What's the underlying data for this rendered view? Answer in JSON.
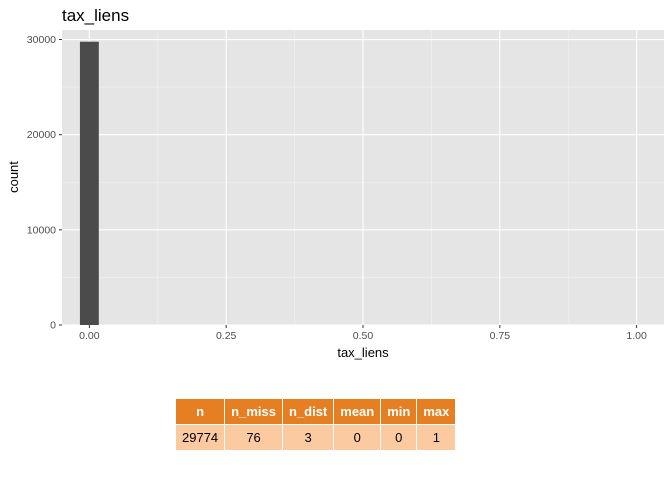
{
  "chart_data": {
    "type": "bar",
    "title": "tax_liens",
    "xlabel": "tax_liens",
    "ylabel": "count",
    "xlim": [
      -0.05,
      1.05
    ],
    "ylim": [
      0,
      31000
    ],
    "x_ticks": [
      0.0,
      0.25,
      0.5,
      0.75,
      1.0
    ],
    "x_tick_labels": [
      "0.00",
      "0.25",
      "0.50",
      "0.75",
      "1.00"
    ],
    "y_ticks": [
      0,
      10000,
      20000,
      30000
    ],
    "y_tick_labels": [
      "0",
      "10000",
      "20000",
      "30000"
    ],
    "bin_width": 0.0345,
    "bins": [
      {
        "x": 0.0,
        "count": 29770
      }
    ],
    "grid": true,
    "panel_color": "#e5e5e5",
    "bar_color": "#4b4b4b"
  },
  "summary_table": {
    "headers": [
      "n",
      "n_miss",
      "n_dist",
      "mean",
      "min",
      "max"
    ],
    "rows": [
      [
        "29774",
        "76",
        "3",
        "0",
        "0",
        "1"
      ]
    ]
  }
}
